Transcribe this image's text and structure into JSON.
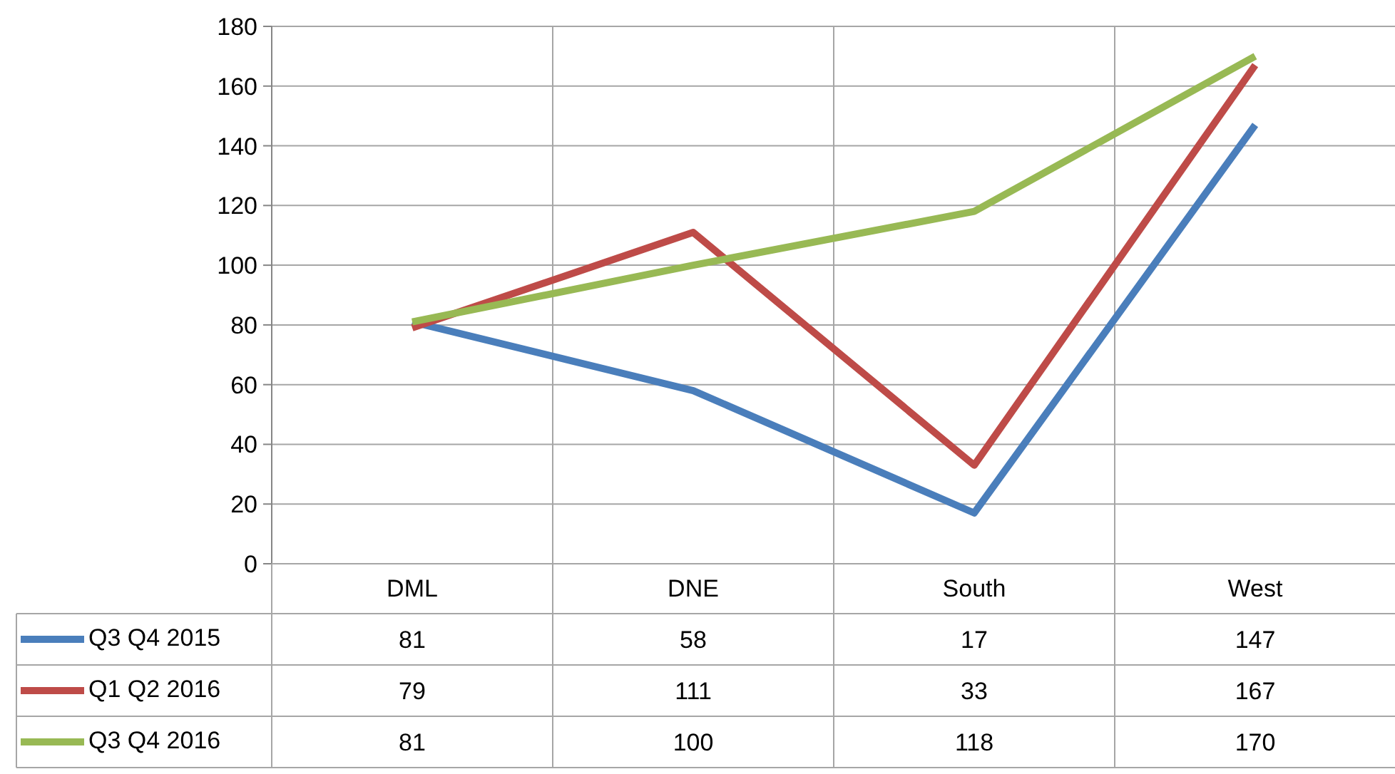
{
  "chart_data": {
    "type": "line",
    "categories": [
      "DML",
      "DNE",
      "South",
      "West"
    ],
    "series": [
      {
        "name": "Q3 Q4 2015",
        "color": "#4a7ebb",
        "values": [
          81,
          58,
          17,
          147
        ]
      },
      {
        "name": "Q1 Q2 2016",
        "color": "#be4b48",
        "values": [
          79,
          111,
          33,
          167
        ]
      },
      {
        "name": "Q3 Q4 2016",
        "color": "#98b954",
        "values": [
          81,
          100,
          118,
          170
        ]
      }
    ],
    "ylim": [
      0,
      180
    ],
    "yticks": [
      0,
      20,
      40,
      60,
      80,
      100,
      120,
      140,
      160,
      180
    ],
    "grid": true,
    "legend": "bottom",
    "data_labels": true,
    "marker": "none",
    "line_style": "solid"
  }
}
